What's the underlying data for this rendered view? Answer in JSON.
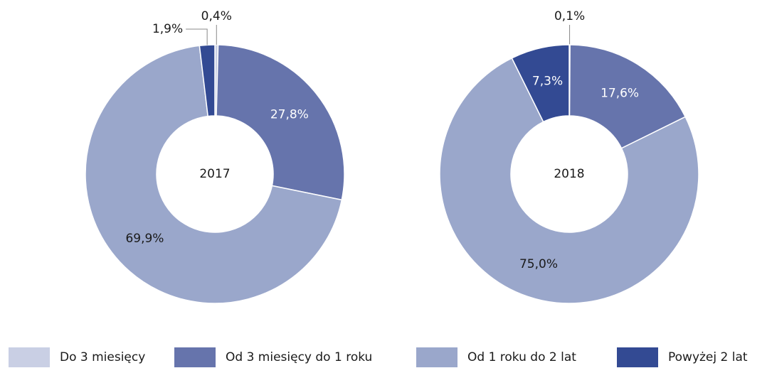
{
  "chart_data": {
    "type": "donut",
    "categories": [
      "Do 3 miesięcy",
      "Od 3 miesięcy do 1 roku",
      "Od 1 roku do 2 lat",
      "Powyżej 2 lat"
    ],
    "colors": [
      "#c9cfe4",
      "#6674ac",
      "#9aa7cb",
      "#334a93"
    ],
    "series": [
      {
        "name": "2017",
        "values": [
          0.4,
          27.8,
          69.9,
          1.9
        ],
        "value_labels": [
          "0,4%",
          "27,8%",
          "69,9%",
          "1,9%"
        ]
      },
      {
        "name": "2018",
        "values": [
          0.1,
          17.6,
          75.0,
          7.3
        ],
        "value_labels": [
          "0,1%",
          "17,6%",
          "75,0%",
          "7,3%"
        ]
      }
    ],
    "legend": "bottom"
  }
}
